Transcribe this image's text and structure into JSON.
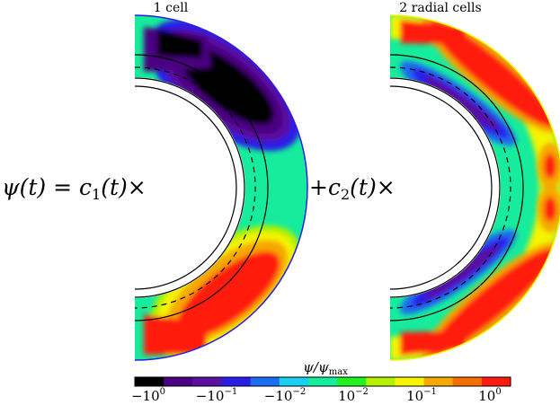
{
  "panels": [
    {
      "title": "1 cell"
    },
    {
      "title": "2 radial cells"
    }
  ],
  "equation": {
    "lhs": "ψ(t) = c",
    "c1_sub": "1",
    "c1_tail": "(t)×",
    "plus": "+c",
    "c2_sub": "2",
    "c2_tail": "(t)×"
  },
  "colorbar": {
    "label": "ψ/ψ",
    "label_sub": "max",
    "colors": [
      "#000000",
      "#4b0082",
      "#5a10a0",
      "#2a1ee6",
      "#1a6cf2",
      "#19d0f0",
      "#16ec9c",
      "#22f222",
      "#b4f000",
      "#f5f500",
      "#f5a800",
      "#f56e00",
      "#ff1a10"
    ],
    "ticks": [
      {
        "base": "−10",
        "exp": "0"
      },
      {
        "base": "−10",
        "exp": "−1"
      },
      {
        "base": "−10",
        "exp": "−2"
      },
      {
        "base": "10",
        "exp": "−2"
      },
      {
        "base": "10",
        "exp": "−1"
      },
      {
        "base": "10",
        "exp": "0"
      }
    ]
  }
}
